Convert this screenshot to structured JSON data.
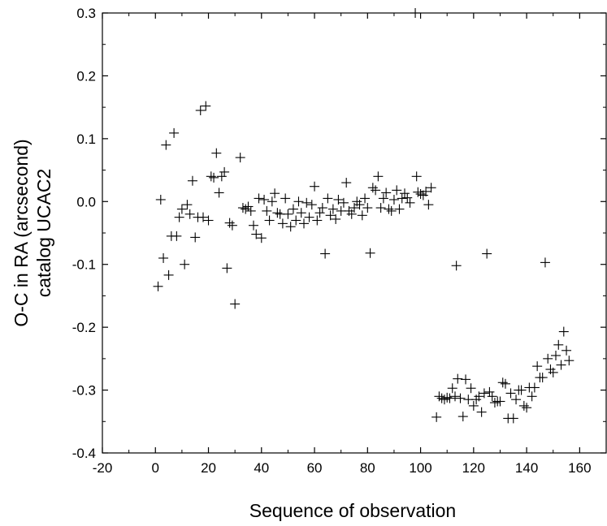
{
  "chart_data": {
    "type": "scatter",
    "xlabel": "Sequence of observation",
    "ylabel_lines": [
      "O-C in RA (arcsecond)",
      "catalog UCAC2"
    ],
    "xlim": [
      -20,
      170
    ],
    "ylim": [
      -0.4,
      0.3
    ],
    "x_ticks": [
      -20,
      0,
      20,
      40,
      60,
      80,
      100,
      120,
      140,
      160
    ],
    "y_ticks": [
      0.3,
      0.2,
      0.1,
      0.0,
      -0.1,
      -0.2,
      -0.3,
      -0.4
    ],
    "y_tick_labels": [
      "0.3",
      "0.2",
      "0.1",
      "0.0",
      "-0.1",
      "-0.2",
      "-0.3",
      "-0.4"
    ],
    "grid": false,
    "marker": "plus",
    "color": "#000000",
    "points": [
      [
        1,
        -0.135
      ],
      [
        2,
        0.003
      ],
      [
        3,
        -0.09
      ],
      [
        4,
        0.09
      ],
      [
        5,
        -0.117
      ],
      [
        6,
        -0.055
      ],
      [
        7,
        0.109
      ],
      [
        8,
        -0.055
      ],
      [
        9,
        -0.025
      ],
      [
        10,
        -0.012
      ],
      [
        11,
        -0.1
      ],
      [
        12,
        -0.005
      ],
      [
        13,
        -0.02
      ],
      [
        14,
        0.033
      ],
      [
        15,
        -0.057
      ],
      [
        16,
        -0.025
      ],
      [
        17,
        0.145
      ],
      [
        18,
        -0.025
      ],
      [
        19,
        0.152
      ],
      [
        20,
        -0.03
      ],
      [
        21,
        0.04
      ],
      [
        22,
        0.038
      ],
      [
        23,
        0.077
      ],
      [
        24,
        0.014
      ],
      [
        25,
        0.04
      ],
      [
        26,
        0.047
      ],
      [
        27,
        -0.106
      ],
      [
        28,
        -0.034
      ],
      [
        29,
        -0.038
      ],
      [
        30,
        -0.163
      ],
      [
        32,
        0.07
      ],
      [
        33,
        -0.01
      ],
      [
        34,
        -0.012
      ],
      [
        35,
        -0.008
      ],
      [
        36,
        -0.015
      ],
      [
        37,
        -0.038
      ],
      [
        38,
        -0.052
      ],
      [
        39,
        0.005
      ],
      [
        40,
        -0.058
      ],
      [
        41,
        0.003
      ],
      [
        42,
        -0.015
      ],
      [
        43,
        -0.03
      ],
      [
        44,
        0.0
      ],
      [
        45,
        0.013
      ],
      [
        46,
        -0.018
      ],
      [
        47,
        -0.02
      ],
      [
        48,
        -0.035
      ],
      [
        49,
        0.005
      ],
      [
        50,
        -0.02
      ],
      [
        51,
        -0.04
      ],
      [
        52,
        -0.012
      ],
      [
        53,
        -0.03
      ],
      [
        54,
        0.0
      ],
      [
        55,
        -0.018
      ],
      [
        56,
        -0.035
      ],
      [
        57,
        -0.002
      ],
      [
        58,
        -0.025
      ],
      [
        59,
        -0.005
      ],
      [
        60,
        0.024
      ],
      [
        61,
        -0.03
      ],
      [
        62,
        -0.018
      ],
      [
        63,
        -0.01
      ],
      [
        64,
        -0.083
      ],
      [
        65,
        0.005
      ],
      [
        66,
        -0.022
      ],
      [
        67,
        -0.012
      ],
      [
        68,
        -0.028
      ],
      [
        69,
        0.003
      ],
      [
        70,
        -0.015
      ],
      [
        71,
        -0.002
      ],
      [
        72,
        0.03
      ],
      [
        73,
        -0.015
      ],
      [
        74,
        -0.02
      ],
      [
        75,
        -0.01
      ],
      [
        76,
        0.0
      ],
      [
        77,
        -0.005
      ],
      [
        78,
        -0.022
      ],
      [
        79,
        0.005
      ],
      [
        80,
        -0.01
      ],
      [
        81,
        -0.082
      ],
      [
        82,
        0.022
      ],
      [
        83,
        0.018
      ],
      [
        84,
        0.04
      ],
      [
        85,
        -0.01
      ],
      [
        86,
        0.005
      ],
      [
        87,
        0.014
      ],
      [
        88,
        -0.012
      ],
      [
        89,
        -0.015
      ],
      [
        90,
        0.003
      ],
      [
        91,
        0.018
      ],
      [
        92,
        -0.012
      ],
      [
        93,
        0.005
      ],
      [
        94,
        0.013
      ],
      [
        95,
        0.006
      ],
      [
        96,
        -0.002
      ],
      [
        98,
        0.3
      ],
      [
        98.5,
        0.04
      ],
      [
        99,
        0.015
      ],
      [
        100,
        0.012
      ],
      [
        101,
        0.01
      ],
      [
        102,
        0.016
      ],
      [
        103,
        -0.005
      ],
      [
        104,
        0.022
      ],
      [
        106,
        -0.343
      ],
      [
        107,
        -0.31
      ],
      [
        108,
        -0.313
      ],
      [
        109,
        -0.315
      ],
      [
        110,
        -0.312
      ],
      [
        111,
        -0.313
      ],
      [
        112,
        -0.297
      ],
      [
        113,
        -0.31
      ],
      [
        113.5,
        -0.102
      ],
      [
        114,
        -0.282
      ],
      [
        115,
        -0.313
      ],
      [
        116,
        -0.342
      ],
      [
        117,
        -0.283
      ],
      [
        118,
        -0.315
      ],
      [
        119,
        -0.297
      ],
      [
        120,
        -0.325
      ],
      [
        121,
        -0.315
      ],
      [
        122,
        -0.31
      ],
      [
        123,
        -0.335
      ],
      [
        124,
        -0.305
      ],
      [
        125,
        -0.083
      ],
      [
        126,
        -0.303
      ],
      [
        127,
        -0.31
      ],
      [
        128,
        -0.32
      ],
      [
        129,
        -0.318
      ],
      [
        130,
        -0.318
      ],
      [
        131,
        -0.288
      ],
      [
        132,
        -0.29
      ],
      [
        133,
        -0.345
      ],
      [
        134,
        -0.305
      ],
      [
        135,
        -0.345
      ],
      [
        136,
        -0.315
      ],
      [
        137,
        -0.3
      ],
      [
        138,
        -0.3
      ],
      [
        139,
        -0.325
      ],
      [
        140,
        -0.328
      ],
      [
        141,
        -0.296
      ],
      [
        142,
        -0.31
      ],
      [
        143,
        -0.296
      ],
      [
        144,
        -0.262
      ],
      [
        145,
        -0.28
      ],
      [
        146,
        -0.28
      ],
      [
        147,
        -0.097
      ],
      [
        148,
        -0.25
      ],
      [
        149,
        -0.267
      ],
      [
        150,
        -0.272
      ],
      [
        151,
        -0.245
      ],
      [
        152,
        -0.228
      ],
      [
        153,
        -0.26
      ],
      [
        154,
        -0.207
      ],
      [
        155,
        -0.237
      ],
      [
        156,
        -0.253
      ]
    ]
  }
}
